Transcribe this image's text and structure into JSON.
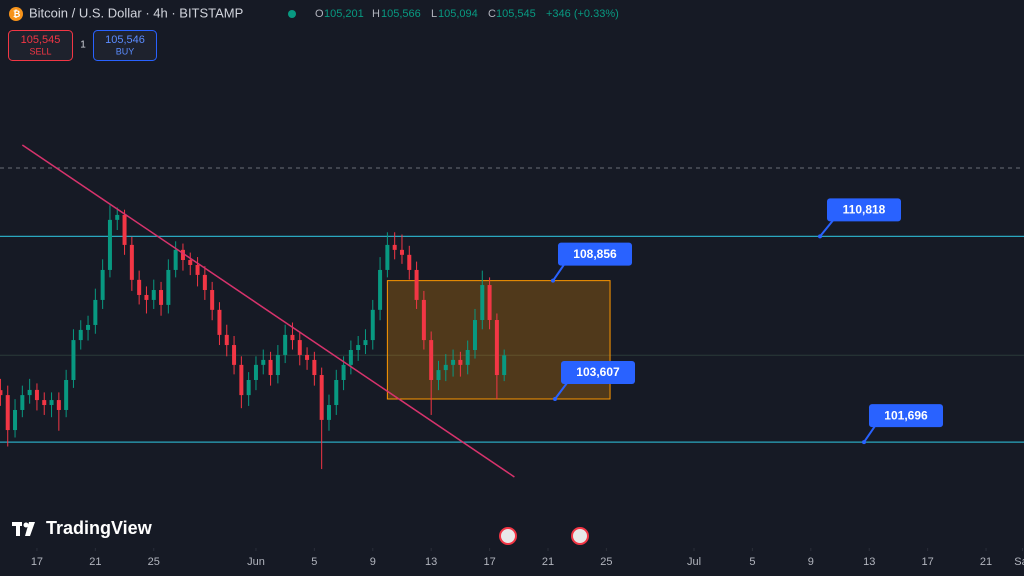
{
  "header": {
    "title": "Bitcoin / U.S. Dollar · 4h · BITSTAMP",
    "ohlc": [
      {
        "key": "O",
        "value": "105,201"
      },
      {
        "key": "H",
        "value": "105,566"
      },
      {
        "key": "L",
        "value": "105,094"
      },
      {
        "key": "C",
        "value": "105,545"
      }
    ],
    "change": "+346 (+0.33%)"
  },
  "trade": {
    "sell_price": "105,545",
    "sell_label": "SELL",
    "quantity": "1",
    "buy_price": "105,546",
    "buy_label": "BUY"
  },
  "branding": "TradingView",
  "chart_data": {
    "type": "candlestick",
    "x": [
      -2.5,
      -2,
      -1.5,
      -1,
      -0.5,
      0,
      0.5,
      1,
      1.5,
      2,
      2.5,
      3,
      3.5,
      4,
      4.5,
      5,
      5.5,
      6,
      6.5,
      7,
      7.5,
      8,
      8.5,
      9,
      9.5,
      10,
      10.5,
      11,
      11.5,
      12,
      12.5,
      13,
      13.5,
      14,
      14.5,
      15,
      15.5,
      16,
      16.5,
      17,
      17.5,
      18,
      18.5,
      19,
      19.5,
      20,
      20.5,
      21,
      21.5,
      22,
      22.5,
      23,
      23.5,
      24,
      24.5,
      25,
      25.5,
      26,
      26.5,
      27,
      27.5,
      28,
      28.5,
      29,
      29.5,
      30,
      30.5,
      31,
      31.5,
      32
    ],
    "open": [
      104000,
      103780,
      102230,
      103120,
      103780,
      104010,
      103560,
      103340,
      103560,
      103120,
      104450,
      106220,
      106670,
      106890,
      108000,
      109330,
      111550,
      111770,
      110440,
      108890,
      108220,
      108000,
      108440,
      107780,
      109330,
      110220,
      109770,
      109550,
      109110,
      108440,
      107560,
      106450,
      106000,
      105120,
      103780,
      104450,
      105120,
      105340,
      104670,
      105560,
      106450,
      106220,
      105560,
      105340,
      104670,
      102680,
      103340,
      104450,
      105120,
      105780,
      106000,
      106220,
      107560,
      109330,
      110440,
      110220,
      110000,
      109330,
      108000,
      106220,
      104450,
      104890,
      105120,
      105340,
      105120,
      105780,
      107110,
      108660,
      107110,
      104670
    ],
    "high": [
      104500,
      104200,
      103600,
      104200,
      104500,
      104300,
      103900,
      103900,
      103900,
      104900,
      106700,
      107100,
      107300,
      108500,
      109800,
      112200,
      112100,
      112000,
      110800,
      109300,
      108600,
      108900,
      108800,
      109800,
      110600,
      110500,
      110100,
      109900,
      109500,
      108800,
      107900,
      106900,
      106400,
      105500,
      104800,
      105500,
      105800,
      105700,
      106000,
      106900,
      107000,
      106600,
      105900,
      105700,
      105000,
      103800,
      104900,
      105500,
      106200,
      106400,
      106700,
      108000,
      109900,
      111000,
      111000,
      110900,
      110400,
      109700,
      108400,
      106600,
      105300,
      105600,
      105800,
      105700,
      106200,
      107600,
      109300,
      109000,
      107400,
      105800
    ],
    "low": [
      103300,
      101500,
      101900,
      102800,
      103400,
      103100,
      102900,
      102800,
      102200,
      102800,
      104100,
      105800,
      106200,
      106500,
      107600,
      109000,
      111100,
      110000,
      108400,
      107800,
      107400,
      107600,
      107300,
      107400,
      109000,
      109300,
      109100,
      108600,
      108000,
      107100,
      106000,
      105500,
      104700,
      103200,
      103300,
      104000,
      104700,
      104200,
      104300,
      105200,
      105800,
      105100,
      104900,
      104200,
      100500,
      102200,
      102900,
      104000,
      104700,
      105300,
      105600,
      105800,
      107100,
      109000,
      109800,
      109600,
      108900,
      107600,
      105800,
      102900,
      104000,
      104400,
      104600,
      104600,
      104700,
      105400,
      106700,
      106700,
      103600,
      104400
    ],
    "close": [
      103780,
      102230,
      103120,
      103780,
      104010,
      103560,
      103340,
      103560,
      103120,
      104450,
      106220,
      106670,
      106890,
      108000,
      109330,
      111550,
      111770,
      110440,
      108890,
      108220,
      108000,
      108440,
      107780,
      109330,
      110220,
      109770,
      109550,
      109110,
      108440,
      107560,
      106450,
      106000,
      105120,
      103780,
      104450,
      105120,
      105340,
      104670,
      105560,
      106450,
      106220,
      105560,
      105340,
      104670,
      102680,
      103340,
      104450,
      105120,
      105780,
      106000,
      106220,
      107560,
      109330,
      110440,
      110220,
      110000,
      109330,
      108000,
      106220,
      104450,
      104890,
      105120,
      105340,
      105120,
      105780,
      107110,
      108660,
      107110,
      104670,
      105545
    ],
    "up_color": "#089981",
    "down_color": "#f23645",
    "xlim": [
      -2.53,
      67.6
    ],
    "ylim": [
      97000,
      121300
    ],
    "xticks": [
      {
        "value": 0,
        "label": "17"
      },
      {
        "value": 4,
        "label": "21"
      },
      {
        "value": 8,
        "label": "25"
      },
      {
        "value": 15,
        "label": "Jun"
      },
      {
        "value": 19,
        "label": "5"
      },
      {
        "value": 23,
        "label": "9"
      },
      {
        "value": 27,
        "label": "13"
      },
      {
        "value": 31,
        "label": "17"
      },
      {
        "value": 35,
        "label": "21"
      },
      {
        "value": 39,
        "label": "25"
      },
      {
        "value": 45,
        "label": "Jul"
      },
      {
        "value": 49,
        "label": "5"
      },
      {
        "value": 53,
        "label": "9"
      },
      {
        "value": 57,
        "label": "13"
      },
      {
        "value": 61,
        "label": "17"
      },
      {
        "value": 65,
        "label": "21"
      },
      {
        "value": 67.5,
        "label": "Sat"
      }
    ],
    "levels": [
      {
        "value": 110818,
        "label": "110,818"
      },
      {
        "value": 101696,
        "label": "101,696"
      }
    ],
    "level_color": "#2aa7bf",
    "dashed_level": 113850,
    "box": {
      "x": [
        24,
        39.25
      ],
      "top": {
        "value": 108856,
        "label": "108,856"
      },
      "bottom": {
        "value": 103607,
        "label": "103,607"
      },
      "color": "#ff9800"
    },
    "trendline": {
      "x": [
        -1,
        32.7
      ],
      "y": [
        114870,
        100150
      ],
      "color": "#d6336c"
    },
    "label_color": "#2962ff"
  }
}
